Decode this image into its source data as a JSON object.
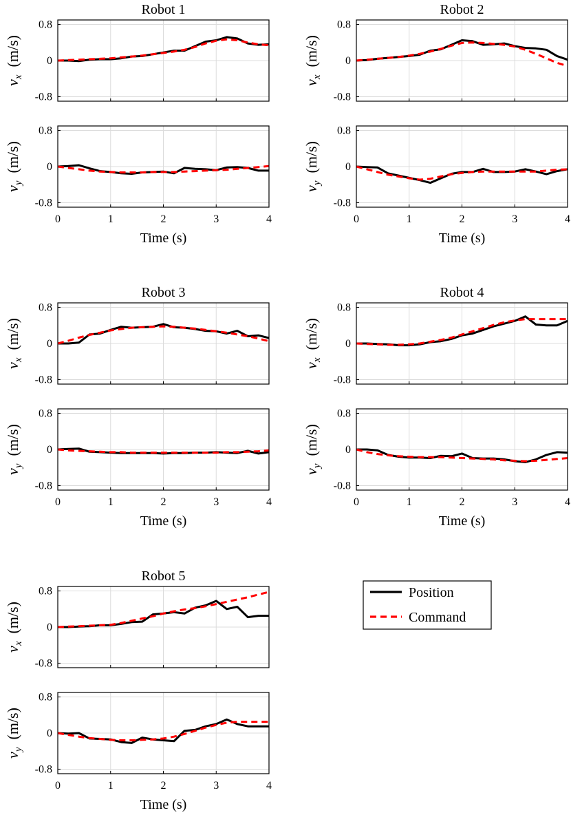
{
  "legend": {
    "position_label": "Position",
    "command_label": "Command",
    "position_color": "#000000",
    "command_color": "#ff0000"
  },
  "common": {
    "xlabel": "Time (s)",
    "vx_ylabel_sym": "v",
    "vx_ylabel_sub": "x",
    "vy_ylabel_sym": "v",
    "vy_ylabel_sub": "y",
    "ylabel_unit": "(m/s)",
    "xticks": [
      0,
      1,
      2,
      3,
      4
    ],
    "yticks": [
      -0.8,
      0,
      0.8
    ],
    "ytick_labels": [
      "-0.8",
      "0",
      "0.8"
    ],
    "xlim": [
      0,
      4
    ],
    "ylim": [
      -0.9,
      0.9
    ]
  },
  "chart_data": [
    {
      "type": "line",
      "title": "Robot 1",
      "grid": true,
      "x": [
        0,
        0.2,
        0.4,
        0.6,
        0.8,
        1.0,
        1.2,
        1.4,
        1.6,
        1.8,
        2.0,
        2.2,
        2.4,
        2.6,
        2.8,
        3.0,
        3.2,
        3.4,
        3.6,
        3.8,
        4.0
      ],
      "vx": {
        "position": [
          0,
          0,
          -0.01,
          0.02,
          0.03,
          0.03,
          0.05,
          0.09,
          0.1,
          0.14,
          0.18,
          0.22,
          0.22,
          0.32,
          0.42,
          0.45,
          0.52,
          0.49,
          0.38,
          0.35,
          0.36
        ],
        "command": [
          0,
          0.01,
          0.02,
          0.03,
          0.04,
          0.05,
          0.07,
          0.09,
          0.11,
          0.14,
          0.17,
          0.2,
          0.24,
          0.3,
          0.38,
          0.44,
          0.47,
          0.45,
          0.4,
          0.36,
          0.34
        ]
      },
      "vy": {
        "position": [
          0,
          0.01,
          0.03,
          -0.04,
          -0.1,
          -0.12,
          -0.15,
          -0.16,
          -0.13,
          -0.12,
          -0.11,
          -0.15,
          -0.03,
          -0.05,
          -0.06,
          -0.08,
          -0.02,
          -0.01,
          -0.03,
          -0.09,
          -0.09
        ],
        "command": [
          0,
          -0.03,
          -0.06,
          -0.09,
          -0.11,
          -0.12,
          -0.13,
          -0.13,
          -0.13,
          -0.12,
          -0.12,
          -0.12,
          -0.11,
          -0.1,
          -0.09,
          -0.08,
          -0.07,
          -0.05,
          -0.03,
          -0.01,
          0.01
        ]
      }
    },
    {
      "type": "line",
      "title": "Robot 2",
      "grid": true,
      "x": [
        0,
        0.2,
        0.4,
        0.6,
        0.8,
        1.0,
        1.2,
        1.4,
        1.6,
        1.8,
        2.0,
        2.2,
        2.4,
        2.6,
        2.8,
        3.0,
        3.2,
        3.4,
        3.6,
        3.8,
        4.0
      ],
      "vx": {
        "position": [
          0,
          0.01,
          0.04,
          0.06,
          0.08,
          0.1,
          0.13,
          0.22,
          0.25,
          0.35,
          0.45,
          0.43,
          0.35,
          0.36,
          0.38,
          0.32,
          0.28,
          0.27,
          0.24,
          0.1,
          0.02
        ],
        "command": [
          0,
          0.02,
          0.04,
          0.06,
          0.08,
          0.11,
          0.15,
          0.2,
          0.26,
          0.33,
          0.39,
          0.4,
          0.39,
          0.37,
          0.35,
          0.31,
          0.24,
          0.15,
          0.05,
          -0.05,
          -0.12
        ]
      },
      "vy": {
        "position": [
          0,
          -0.01,
          -0.02,
          -0.15,
          -0.2,
          -0.25,
          -0.3,
          -0.36,
          -0.26,
          -0.16,
          -0.12,
          -0.12,
          -0.05,
          -0.12,
          -0.12,
          -0.11,
          -0.06,
          -0.11,
          -0.17,
          -0.1,
          -0.06
        ],
        "command": [
          0,
          -0.06,
          -0.12,
          -0.18,
          -0.22,
          -0.26,
          -0.29,
          -0.27,
          -0.22,
          -0.17,
          -0.14,
          -0.12,
          -0.11,
          -0.11,
          -0.11,
          -0.11,
          -0.11,
          -0.11,
          -0.09,
          -0.07,
          -0.06
        ]
      }
    },
    {
      "type": "line",
      "title": "Robot 3",
      "grid": true,
      "x": [
        0,
        0.2,
        0.4,
        0.6,
        0.8,
        1.0,
        1.2,
        1.4,
        1.6,
        1.8,
        2.0,
        2.2,
        2.4,
        2.6,
        2.8,
        3.0,
        3.2,
        3.4,
        3.6,
        3.8,
        4.0
      ],
      "vx": {
        "position": [
          0,
          0,
          0.02,
          0.2,
          0.22,
          0.3,
          0.37,
          0.35,
          0.36,
          0.37,
          0.43,
          0.36,
          0.35,
          0.32,
          0.28,
          0.27,
          0.22,
          0.28,
          0.16,
          0.18,
          0.12
        ],
        "command": [
          0,
          0.06,
          0.13,
          0.19,
          0.24,
          0.29,
          0.32,
          0.35,
          0.36,
          0.37,
          0.38,
          0.37,
          0.35,
          0.33,
          0.3,
          0.27,
          0.24,
          0.2,
          0.16,
          0.11,
          0.05
        ]
      },
      "vy": {
        "position": [
          0,
          0.01,
          0.02,
          -0.05,
          -0.06,
          -0.07,
          -0.08,
          -0.08,
          -0.08,
          -0.08,
          -0.09,
          -0.08,
          -0.08,
          -0.07,
          -0.07,
          -0.06,
          -0.07,
          -0.08,
          -0.03,
          -0.09,
          -0.06
        ],
        "command": [
          0,
          -0.02,
          -0.03,
          -0.04,
          -0.05,
          -0.06,
          -0.06,
          -0.07,
          -0.07,
          -0.07,
          -0.07,
          -0.07,
          -0.07,
          -0.07,
          -0.07,
          -0.07,
          -0.06,
          -0.06,
          -0.05,
          -0.04,
          -0.02
        ]
      }
    },
    {
      "type": "line",
      "title": "Robot 4",
      "grid": true,
      "x": [
        0,
        0.2,
        0.4,
        0.6,
        0.8,
        1.0,
        1.2,
        1.4,
        1.6,
        1.8,
        2.0,
        2.2,
        2.4,
        2.6,
        2.8,
        3.0,
        3.2,
        3.4,
        3.6,
        3.8,
        4.0
      ],
      "vx": {
        "position": [
          0,
          0,
          -0.01,
          -0.02,
          -0.04,
          -0.04,
          -0.02,
          0.03,
          0.05,
          0.1,
          0.18,
          0.22,
          0.3,
          0.38,
          0.44,
          0.5,
          0.6,
          0.42,
          0.4,
          0.4,
          0.5
        ],
        "command": [
          0,
          -0.01,
          -0.02,
          -0.03,
          -0.03,
          -0.02,
          0,
          0.04,
          0.08,
          0.13,
          0.2,
          0.27,
          0.34,
          0.41,
          0.47,
          0.51,
          0.54,
          0.54,
          0.54,
          0.54,
          0.54
        ]
      },
      "vy": {
        "position": [
          0,
          0,
          -0.02,
          -0.12,
          -0.16,
          -0.18,
          -0.18,
          -0.19,
          -0.14,
          -0.15,
          -0.09,
          -0.19,
          -0.2,
          -0.2,
          -0.22,
          -0.26,
          -0.28,
          -0.22,
          -0.12,
          -0.06,
          -0.07
        ],
        "command": [
          0,
          -0.06,
          -0.1,
          -0.13,
          -0.15,
          -0.16,
          -0.17,
          -0.17,
          -0.17,
          -0.18,
          -0.19,
          -0.2,
          -0.21,
          -0.22,
          -0.24,
          -0.25,
          -0.26,
          -0.25,
          -0.23,
          -0.21,
          -0.19
        ]
      }
    },
    {
      "type": "line",
      "title": "Robot 5",
      "grid": true,
      "x": [
        0,
        0.2,
        0.4,
        0.6,
        0.8,
        1.0,
        1.2,
        1.4,
        1.6,
        1.8,
        2.0,
        2.2,
        2.4,
        2.6,
        2.8,
        3.0,
        3.2,
        3.4,
        3.6,
        3.8,
        4.0
      ],
      "vx": {
        "position": [
          0,
          0,
          0.01,
          0.02,
          0.04,
          0.04,
          0.07,
          0.11,
          0.12,
          0.28,
          0.3,
          0.33,
          0.3,
          0.43,
          0.48,
          0.58,
          0.4,
          0.45,
          0.22,
          0.25,
          0.25
        ],
        "command": [
          0,
          0.01,
          0.02,
          0.03,
          0.04,
          0.05,
          0.09,
          0.14,
          0.19,
          0.24,
          0.3,
          0.35,
          0.39,
          0.42,
          0.46,
          0.51,
          0.56,
          0.61,
          0.66,
          0.72,
          0.78
        ]
      },
      "vy": {
        "position": [
          0,
          -0.01,
          0,
          -0.12,
          -0.13,
          -0.14,
          -0.2,
          -0.22,
          -0.1,
          -0.14,
          -0.16,
          -0.18,
          0.05,
          0.07,
          0.15,
          0.2,
          0.3,
          0.2,
          0.15,
          0.15,
          0.15
        ],
        "command": [
          0,
          -0.04,
          -0.08,
          -0.11,
          -0.13,
          -0.15,
          -0.16,
          -0.16,
          -0.15,
          -0.14,
          -0.12,
          -0.08,
          -0.02,
          0.05,
          0.12,
          0.18,
          0.23,
          0.25,
          0.25,
          0.25,
          0.25
        ]
      }
    }
  ]
}
